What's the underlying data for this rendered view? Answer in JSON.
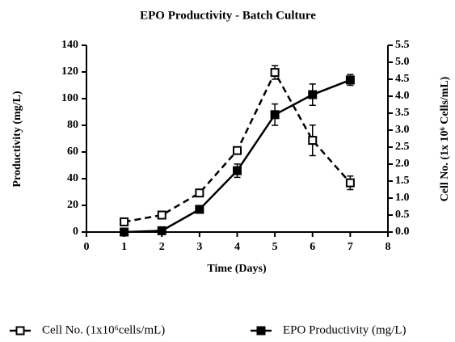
{
  "chart_data": {
    "type": "line",
    "title": "EPO Productivity - Batch Culture",
    "x_label": "Time (Days)",
    "y_label": "Productivity (mg/L)",
    "y2_label": "Cell No. (1x 10⁶ Cells/mL)",
    "x": [
      1,
      2,
      3,
      4,
      5,
      6,
      7
    ],
    "xlim": [
      0,
      8
    ],
    "xticks": [
      0,
      1,
      2,
      3,
      4,
      5,
      6,
      7,
      8
    ],
    "ylim": [
      0,
      140
    ],
    "yticks": [
      0,
      20,
      40,
      60,
      80,
      100,
      120,
      140
    ],
    "y2lim": [
      0,
      5.5
    ],
    "y2ticks": [
      {
        "value": 0,
        "label": "0.0"
      },
      0.5,
      {
        "value": 1,
        "label": "1.0"
      },
      1.5,
      {
        "value": 2,
        "label": "2.0"
      },
      2.5,
      {
        "value": 3,
        "label": "3.0"
      },
      3.5,
      {
        "value": 4,
        "label": "4.0"
      },
      4.5,
      {
        "value": 5,
        "label": "5.0"
      },
      5.5
    ],
    "legend": "bottom",
    "series": [
      {
        "name": "Cell No. (1x10⁶cells/mL)",
        "color": "#000000",
        "axis": "y2",
        "dashed": true,
        "marker": "open-square",
        "values": [
          0.3,
          0.5,
          1.15,
          2.4,
          4.7,
          2.7,
          1.45
        ],
        "errors": [
          0.02,
          0.02,
          0.05,
          0.05,
          0.2,
          0.45,
          0.2
        ]
      },
      {
        "name": "EPO Productivity (mg/L)",
        "color": "#000000",
        "axis": "y",
        "dashed": false,
        "marker": "filled-square",
        "values": [
          0,
          1,
          17,
          46,
          88,
          103,
          114
        ],
        "errors": [
          0.5,
          0.5,
          1,
          5,
          8,
          8,
          4
        ]
      }
    ]
  }
}
